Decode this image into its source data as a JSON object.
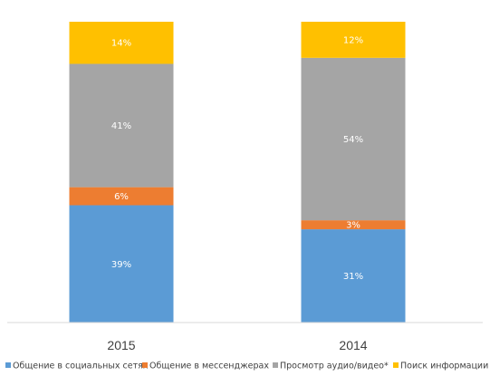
{
  "chart_data": {
    "type": "bar",
    "stacked": true,
    "normalized": true,
    "categories": [
      "2015",
      "2014"
    ],
    "series": [
      {
        "name": "Общение в социальных сетях",
        "color": "#5B9BD5",
        "values": [
          39,
          31
        ],
        "labels": [
          "39%",
          "31%"
        ]
      },
      {
        "name": "Общение в мессенджерах",
        "color": "#ED7D31",
        "values": [
          6,
          3
        ],
        "labels": [
          "6%",
          "3%"
        ]
      },
      {
        "name": "Просмотр аудио/видео*",
        "color": "#A5A5A5",
        "values": [
          41,
          54
        ],
        "labels": [
          "41%",
          "54%"
        ]
      },
      {
        "name": "Поиск информации",
        "color": "#FFC000",
        "values": [
          14,
          12
        ],
        "labels": [
          "14%",
          "12%"
        ]
      }
    ],
    "title": "",
    "xlabel": "",
    "ylabel": "",
    "ylim": [
      0,
      100
    ],
    "grid": false,
    "legend_position": "bottom"
  }
}
